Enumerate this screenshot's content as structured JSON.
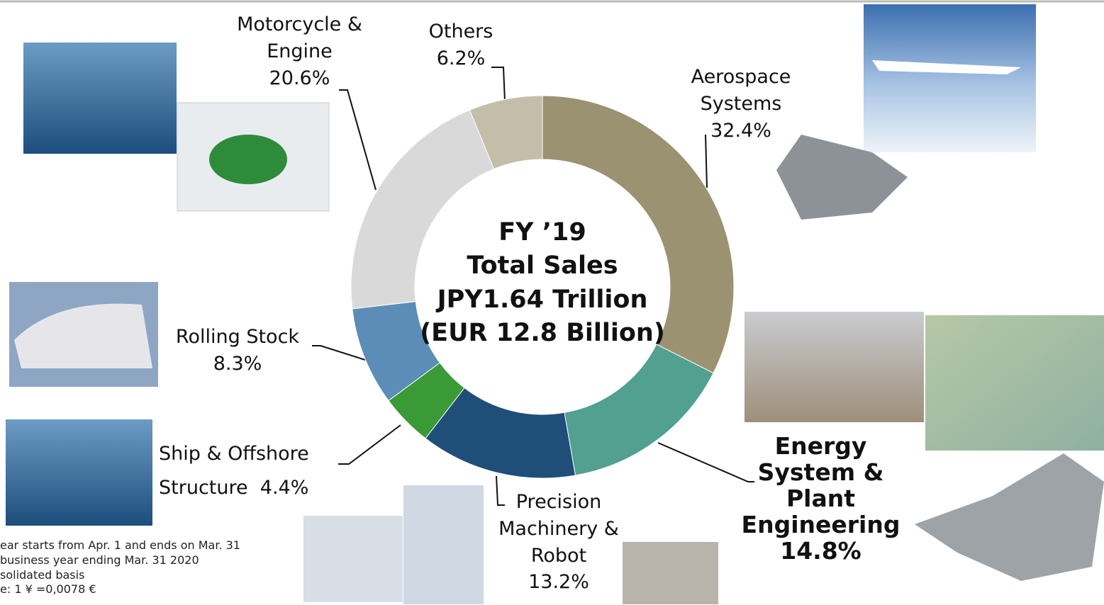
{
  "chart_data": {
    "type": "donut",
    "center_text": [
      "FY ’19",
      "Total Sales",
      "JPY1.64 Trillion",
      "(EUR 12.8 Billion)"
    ],
    "categories": [
      "Aerospace Systems",
      "Energy System & Plant Engineering",
      "Precision Machinery & Robot",
      "Ship & Offshore Structure",
      "Rolling Stock",
      "Motorcycle & Engine",
      "Others"
    ],
    "values": [
      32.4,
      14.8,
      13.2,
      4.4,
      8.3,
      20.6,
      6.2
    ],
    "value_labels": [
      "32.4%",
      "14.8%",
      "13.2%",
      "4.4%",
      "8.3%",
      "20.6%",
      "6.2%"
    ],
    "colors": [
      "#9b9272",
      "#52a08f",
      "#1f4e79",
      "#3a9a35",
      "#5b8db8",
      "#d9d9d9",
      "#c4bda9"
    ],
    "notes": [
      "ear starts from Apr. 1 and ends on Mar. 31",
      "business year ending  Mar. 31 2020",
      "solidated basis",
      "e: 1 ¥ =0,0078 €"
    ]
  }
}
